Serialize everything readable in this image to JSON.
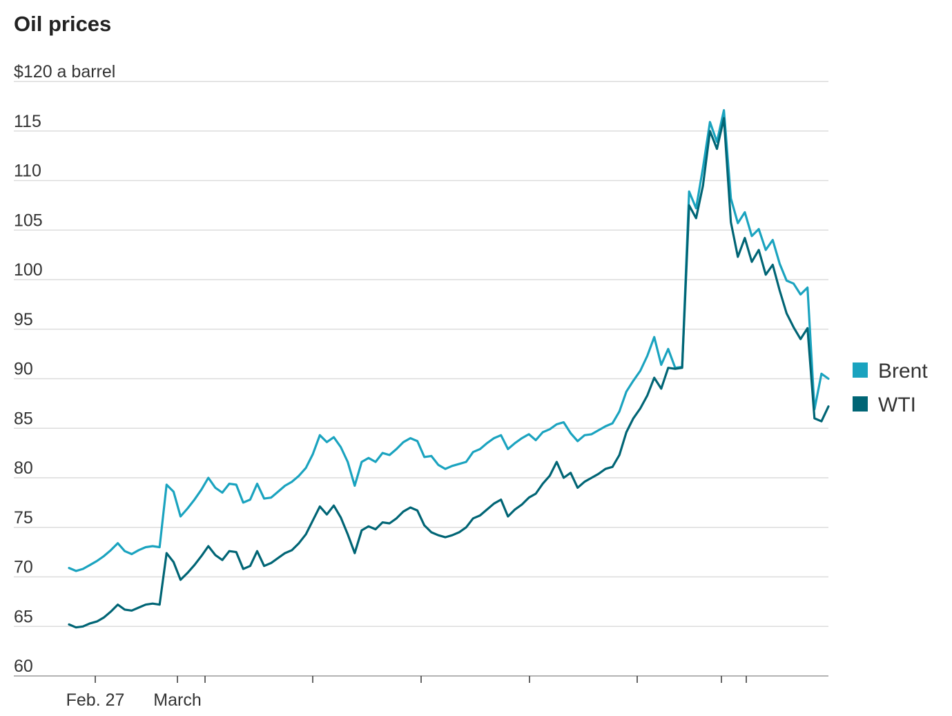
{
  "chart_data": {
    "type": "line",
    "title": "Oil prices",
    "ylabel": "$120 a barrel",
    "ylim": [
      60,
      120
    ],
    "yticks": [
      60,
      65,
      70,
      75,
      80,
      85,
      90,
      95,
      100,
      105,
      110,
      115,
      120
    ],
    "ytick_labels": [
      "60",
      "65",
      "70",
      "75",
      "80",
      "85",
      "90",
      "95",
      "100",
      "105",
      "110",
      "115",
      "$120 a barrel"
    ],
    "grid": true,
    "legend_position": "right",
    "xtick_labels": [
      "Feb. 27",
      "March"
    ],
    "series": [
      {
        "name": "Brent",
        "color": "#1aa3bf",
        "values": [
          70.9,
          70.6,
          70.8,
          71.2,
          71.6,
          72.1,
          72.7,
          73.4,
          72.6,
          72.3,
          72.7,
          73.0,
          73.1,
          73.0,
          79.3,
          78.6,
          76.1,
          76.9,
          77.8,
          78.8,
          80.0,
          79.0,
          78.5,
          79.4,
          79.3,
          77.5,
          77.8,
          79.4,
          77.9,
          78.0,
          78.6,
          79.2,
          79.6,
          80.2,
          81.0,
          82.4,
          84.3,
          83.6,
          84.1,
          83.1,
          81.6,
          79.2,
          81.6,
          82.0,
          81.6,
          82.5,
          82.3,
          82.9,
          83.6,
          84.0,
          83.7,
          82.1,
          82.2,
          81.3,
          80.9,
          81.2,
          81.4,
          81.6,
          82.6,
          82.9,
          83.5,
          84.0,
          84.3,
          82.9,
          83.5,
          84.0,
          84.4,
          83.8,
          84.6,
          84.9,
          85.4,
          85.6,
          84.5,
          83.7,
          84.3,
          84.4,
          84.8,
          85.2,
          85.5,
          86.7,
          88.7,
          89.8,
          90.8,
          92.3,
          94.2,
          91.4,
          93.0,
          91.1,
          91.2,
          108.9,
          107.2,
          111.3,
          115.9,
          113.9,
          117.1,
          108.2,
          105.7,
          106.8,
          104.4,
          105.1,
          103.0,
          104.0,
          101.6,
          99.9,
          99.6,
          98.5,
          99.2,
          86.9,
          90.5,
          90.0
        ]
      },
      {
        "name": "WTI",
        "color": "#006575",
        "values": [
          65.2,
          64.9,
          65.0,
          65.3,
          65.5,
          65.9,
          66.5,
          67.2,
          66.7,
          66.6,
          66.9,
          67.2,
          67.3,
          67.2,
          72.4,
          71.5,
          69.7,
          70.4,
          71.2,
          72.1,
          73.1,
          72.2,
          71.7,
          72.6,
          72.5,
          70.8,
          71.1,
          72.6,
          71.1,
          71.4,
          71.9,
          72.4,
          72.7,
          73.4,
          74.3,
          75.7,
          77.1,
          76.3,
          77.2,
          76.0,
          74.3,
          72.4,
          74.7,
          75.1,
          74.8,
          75.5,
          75.4,
          75.9,
          76.6,
          77.0,
          76.7,
          75.2,
          74.5,
          74.2,
          74.0,
          74.2,
          74.5,
          75.0,
          75.9,
          76.2,
          76.8,
          77.4,
          77.8,
          76.1,
          76.8,
          77.3,
          78.0,
          78.4,
          79.4,
          80.2,
          81.6,
          80.0,
          80.5,
          79.0,
          79.6,
          80.0,
          80.4,
          80.9,
          81.1,
          82.3,
          84.6,
          86.0,
          87.0,
          88.3,
          90.1,
          89.0,
          91.1,
          91.0,
          91.1,
          107.5,
          106.2,
          109.5,
          115.0,
          113.2,
          116.3,
          105.8,
          102.3,
          104.2,
          101.8,
          103.0,
          100.5,
          101.5,
          98.9,
          96.6,
          95.2,
          94.0,
          95.1,
          86.0,
          85.7,
          87.2
        ]
      }
    ]
  }
}
